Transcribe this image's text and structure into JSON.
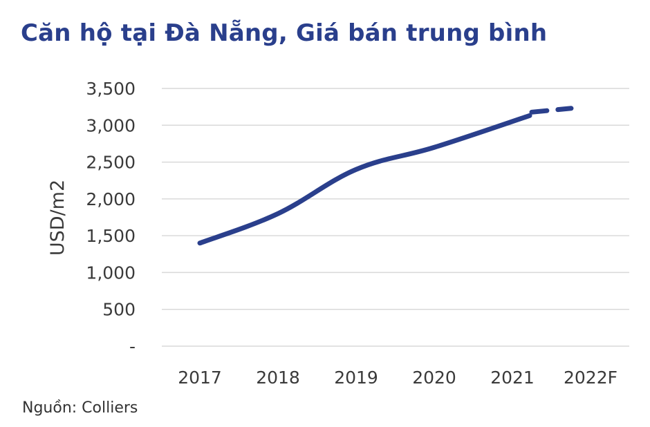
{
  "header": {
    "title": "Căn hộ tại Đà Nẵng, Giá bán trung bình"
  },
  "footer": {
    "source": "Nguồn: Colliers"
  },
  "colors": {
    "line": "#2a3f8c",
    "grid": "#d9d9d9",
    "title": "#2a3f8c",
    "text": "#3a3a3a"
  },
  "chart_data": {
    "type": "line",
    "title": "Căn hộ tại Đà Nẵng, Giá bán trung bình",
    "xlabel": "",
    "ylabel": "USD/m2",
    "categories": [
      "2017",
      "2018",
      "2019",
      "2020",
      "2021",
      "2022F"
    ],
    "y_ticks": [
      {
        "value": 0,
        "label": "-"
      },
      {
        "value": 500,
        "label": "500"
      },
      {
        "value": 1000,
        "label": "1,000"
      },
      {
        "value": 1500,
        "label": "1,500"
      },
      {
        "value": 2000,
        "label": "2,000"
      },
      {
        "value": 2500,
        "label": "2,500"
      },
      {
        "value": 3000,
        "label": "3,000"
      },
      {
        "value": 3500,
        "label": "3,500"
      }
    ],
    "ylim": [
      0,
      3500
    ],
    "grid": true,
    "legend": "none",
    "series": [
      {
        "x": [
          "2017",
          "2018",
          "2019",
          "2020",
          "2021"
        ],
        "values": [
          1400,
          1800,
          2400,
          2700,
          3150
        ],
        "style": "solid"
      },
      {
        "x": [
          "2021",
          "2022F"
        ],
        "values": [
          3150,
          3230
        ],
        "style": "dashed"
      }
    ]
  }
}
